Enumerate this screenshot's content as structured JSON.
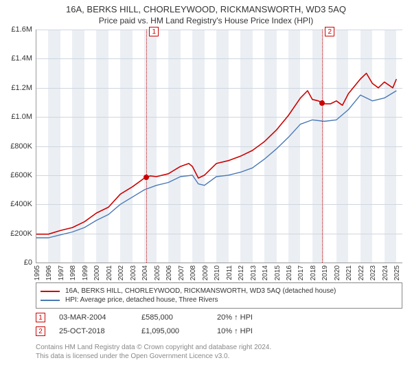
{
  "title": "16A, BERKS HILL, CHORLEYWOOD, RICKMANSWORTH, WD3 5AQ",
  "subtitle": "Price paid vs. HM Land Registry's House Price Index (HPI)",
  "chart": {
    "type": "line",
    "background_color": "#ffffff",
    "band_color": "#ebeff4",
    "grid_color": "#cfd6df",
    "axis_color": "#999999",
    "ylim": [
      0,
      1600000
    ],
    "yticks": [
      {
        "v": 0,
        "label": "£0"
      },
      {
        "v": 200000,
        "label": "£200K"
      },
      {
        "v": 400000,
        "label": "£400K"
      },
      {
        "v": 600000,
        "label": "£600K"
      },
      {
        "v": 800000,
        "label": "£800K"
      },
      {
        "v": 1000000,
        "label": "£1.0M"
      },
      {
        "v": 1200000,
        "label": "£1.2M"
      },
      {
        "v": 1400000,
        "label": "£1.4M"
      },
      {
        "v": 1600000,
        "label": "£1.6M"
      }
    ],
    "xlim": [
      1995,
      2025.5
    ],
    "xticks": [
      1995,
      1996,
      1997,
      1998,
      1999,
      2000,
      2001,
      2002,
      2003,
      2004,
      2005,
      2006,
      2007,
      2008,
      2009,
      2010,
      2011,
      2012,
      2013,
      2014,
      2015,
      2016,
      2017,
      2018,
      2019,
      2020,
      2021,
      2022,
      2023,
      2024,
      2025
    ],
    "markers": [
      {
        "label": "1",
        "x": 2004.17,
        "y": 585000,
        "color": "#cc0000"
      },
      {
        "label": "2",
        "x": 2018.82,
        "y": 1095000,
        "color": "#cc0000"
      }
    ],
    "series": [
      {
        "name": "price_paid",
        "label": "16A, BERKS HILL, CHORLEYWOOD, RICKMANSWORTH, WD3 5AQ (detached house)",
        "color": "#cc0000",
        "line_width": 1.6,
        "points": [
          [
            1995,
            195000
          ],
          [
            1996,
            195000
          ],
          [
            1997,
            220000
          ],
          [
            1998,
            240000
          ],
          [
            1999,
            280000
          ],
          [
            2000,
            340000
          ],
          [
            2001,
            380000
          ],
          [
            2002,
            470000
          ],
          [
            2003,
            520000
          ],
          [
            2004,
            580000
          ],
          [
            2004.5,
            595000
          ],
          [
            2005,
            590000
          ],
          [
            2006,
            610000
          ],
          [
            2007,
            660000
          ],
          [
            2007.7,
            680000
          ],
          [
            2008,
            660000
          ],
          [
            2008.5,
            580000
          ],
          [
            2009,
            600000
          ],
          [
            2009.5,
            640000
          ],
          [
            2010,
            680000
          ],
          [
            2011,
            700000
          ],
          [
            2012,
            730000
          ],
          [
            2013,
            770000
          ],
          [
            2014,
            830000
          ],
          [
            2015,
            910000
          ],
          [
            2016,
            1010000
          ],
          [
            2017,
            1130000
          ],
          [
            2017.6,
            1180000
          ],
          [
            2018,
            1120000
          ],
          [
            2018.5,
            1110000
          ],
          [
            2019,
            1090000
          ],
          [
            2019.5,
            1090000
          ],
          [
            2020,
            1110000
          ],
          [
            2020.5,
            1080000
          ],
          [
            2021,
            1160000
          ],
          [
            2022,
            1260000
          ],
          [
            2022.5,
            1300000
          ],
          [
            2023,
            1230000
          ],
          [
            2023.5,
            1200000
          ],
          [
            2024,
            1240000
          ],
          [
            2024.7,
            1200000
          ],
          [
            2025,
            1260000
          ]
        ]
      },
      {
        "name": "hpi",
        "label": "HPI: Average price, detached house, Three Rivers",
        "color": "#4a78b5",
        "line_width": 1.4,
        "points": [
          [
            1995,
            170000
          ],
          [
            1996,
            170000
          ],
          [
            1997,
            190000
          ],
          [
            1998,
            210000
          ],
          [
            1999,
            240000
          ],
          [
            2000,
            290000
          ],
          [
            2001,
            330000
          ],
          [
            2002,
            400000
          ],
          [
            2003,
            450000
          ],
          [
            2004,
            500000
          ],
          [
            2005,
            530000
          ],
          [
            2006,
            550000
          ],
          [
            2007,
            590000
          ],
          [
            2008,
            600000
          ],
          [
            2008.5,
            540000
          ],
          [
            2009,
            530000
          ],
          [
            2010,
            590000
          ],
          [
            2011,
            600000
          ],
          [
            2012,
            620000
          ],
          [
            2013,
            650000
          ],
          [
            2014,
            710000
          ],
          [
            2015,
            780000
          ],
          [
            2016,
            860000
          ],
          [
            2017,
            950000
          ],
          [
            2018,
            980000
          ],
          [
            2019,
            970000
          ],
          [
            2020,
            980000
          ],
          [
            2021,
            1050000
          ],
          [
            2022,
            1150000
          ],
          [
            2023,
            1110000
          ],
          [
            2024,
            1130000
          ],
          [
            2025,
            1180000
          ]
        ]
      }
    ]
  },
  "legend": {
    "line1_label": "16A, BERKS HILL, CHORLEYWOOD, RICKMANSWORTH, WD3 5AQ (detached house)",
    "line2_label": "HPI: Average price, detached house, Three Rivers"
  },
  "transactions": [
    {
      "badge": "1",
      "date": "03-MAR-2004",
      "price": "£585,000",
      "delta": "20% ↑ HPI"
    },
    {
      "badge": "2",
      "date": "25-OCT-2018",
      "price": "£1,095,000",
      "delta": "10% ↑ HPI"
    }
  ],
  "footer": {
    "line1": "Contains HM Land Registry data © Crown copyright and database right 2024.",
    "line2": "This data is licensed under the Open Government Licence v3.0."
  }
}
